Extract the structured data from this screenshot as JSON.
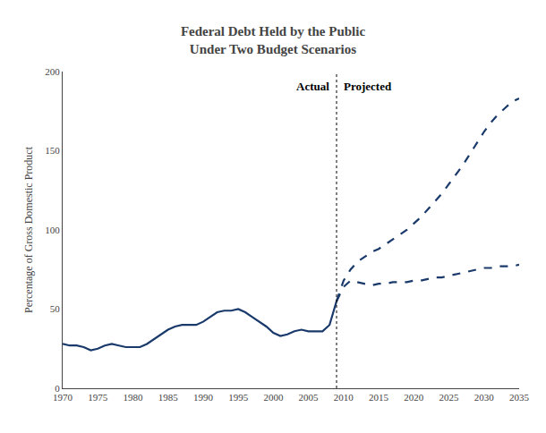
{
  "chart_data": {
    "type": "line",
    "title": "Federal Debt Held by the Public",
    "subtitle": "Under Two Budget Scenarios",
    "y_label": "Percentage of Gross Domestic Product",
    "xlim": [
      1970,
      2035
    ],
    "ylim": [
      0,
      200
    ],
    "xticks": [
      1970,
      1975,
      1980,
      1985,
      1990,
      1995,
      2000,
      2005,
      2010,
      2015,
      2020,
      2025,
      2030,
      2035
    ],
    "yticks": [
      0,
      50,
      100,
      150,
      200
    ],
    "grid": false,
    "divider": 2009,
    "divider_labels": [
      "Actual",
      "Projected"
    ],
    "series": [
      {
        "color": "#1a3a6b",
        "line_style": "solid",
        "x": [
          1970,
          1971,
          1972,
          1973,
          1974,
          1975,
          1976,
          1977,
          1978,
          1979,
          1980,
          1981,
          1982,
          1983,
          1984,
          1985,
          1986,
          1987,
          1988,
          1989,
          1990,
          1991,
          1992,
          1993,
          1994,
          1995,
          1996,
          1997,
          1998,
          1999,
          2000,
          2001,
          2002,
          2003,
          2004,
          2005,
          2006,
          2007,
          2008,
          2009
        ],
        "values": [
          28,
          27,
          27,
          26,
          24,
          25,
          27,
          28,
          27,
          26,
          26,
          26,
          28,
          31,
          34,
          37,
          39,
          40,
          40,
          40,
          42,
          45,
          48,
          49,
          49,
          50,
          48,
          45,
          42,
          39,
          35,
          33,
          34,
          36,
          37,
          36,
          36,
          36,
          40,
          55
        ]
      },
      {
        "color": "#1a3a6b",
        "line_style": "dashed",
        "x": [
          2009,
          2010,
          2011,
          2012,
          2013,
          2014,
          2015,
          2016,
          2017,
          2018,
          2019,
          2020,
          2021,
          2022,
          2023,
          2024,
          2025,
          2026,
          2027,
          2028,
          2029,
          2030,
          2031,
          2032,
          2033,
          2034,
          2035
        ],
        "values": [
          55,
          64,
          68,
          67,
          66,
          65,
          66,
          66,
          67,
          67,
          67,
          68,
          68,
          69,
          70,
          70,
          71,
          72,
          73,
          74,
          75,
          76,
          76,
          77,
          77,
          77,
          78
        ]
      },
      {
        "color": "#1a3a6b",
        "line_style": "dashed",
        "x": [
          2009,
          2010,
          2011,
          2012,
          2013,
          2014,
          2015,
          2016,
          2017,
          2018,
          2019,
          2020,
          2021,
          2022,
          2023,
          2024,
          2025,
          2026,
          2027,
          2028,
          2029,
          2030,
          2031,
          2032,
          2033,
          2034,
          2035
        ],
        "values": [
          55,
          68,
          75,
          80,
          83,
          86,
          88,
          91,
          94,
          97,
          100,
          104,
          108,
          113,
          118,
          123,
          129,
          135,
          141,
          148,
          155,
          162,
          168,
          173,
          177,
          181,
          183
        ]
      }
    ]
  }
}
